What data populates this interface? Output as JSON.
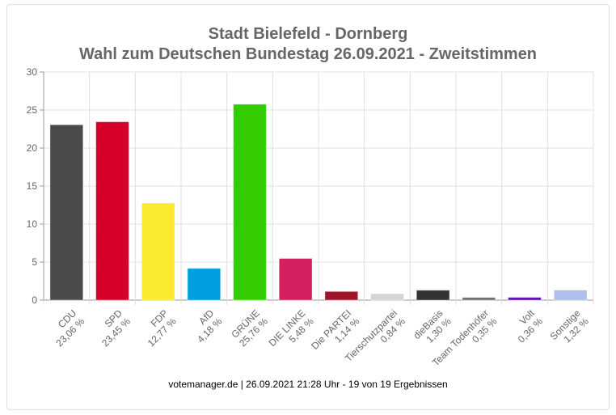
{
  "chart_data": {
    "type": "bar",
    "title": "Stadt Bielefeld - Dornberg",
    "subtitle": "Wahl zum Deutschen Bundestag 26.09.2021  - Zweitstimmen",
    "xlabel": "",
    "ylabel": "",
    "ylim": [
      0,
      30
    ],
    "yticks": [
      0,
      5,
      10,
      15,
      20,
      25,
      30
    ],
    "grid": true,
    "legend": "none",
    "categories": [
      "CDU",
      "SPD",
      "FDP",
      "AfD",
      "GRÜNE",
      "DIE LINKE",
      "Die PARTEI",
      "Tierschutzpartei",
      "dieBasis",
      "Team Todenhöfer",
      "Volt",
      "Sonstige"
    ],
    "values": [
      23.06,
      23.45,
      12.77,
      4.18,
      25.76,
      5.48,
      1.14,
      0.84,
      1.3,
      0.35,
      0.36,
      1.32
    ],
    "value_labels": [
      "23,06 %",
      "23,45 %",
      "12,77 %",
      "4,18 %",
      "25,76 %",
      "5,48 %",
      "1,14 %",
      "0,84 %",
      "1,30 %",
      "0,35 %",
      "0,36 %",
      "1,32 %"
    ],
    "colors": [
      "#4a4a4a",
      "#d7002a",
      "#fbe92f",
      "#009fe0",
      "#33cc00",
      "#d11f5f",
      "#a0152a",
      "#d3d3d3",
      "#333333",
      "#6b6b6b",
      "#5e0db5",
      "#aec0e8"
    ]
  },
  "footer": "votemanager.de | 26.09.2021 21:28 Uhr - 19 von 19 Ergebnissen"
}
